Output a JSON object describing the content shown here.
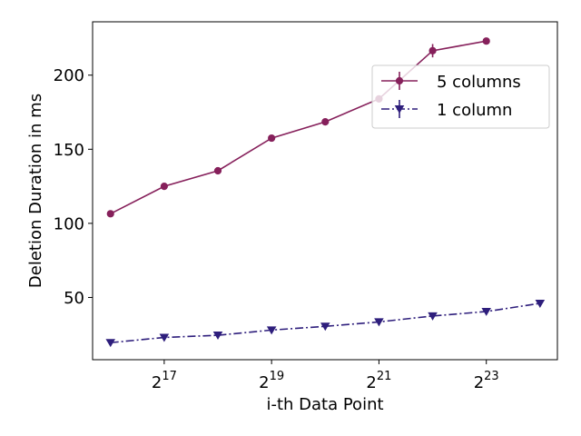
{
  "chart_data": {
    "type": "line",
    "title": "",
    "xlabel": "i-th Data Point",
    "ylabel": "Deletion Duration in ms",
    "x_scale": "log2",
    "x": [
      65536,
      131072,
      262144,
      524288,
      1048576,
      2097152,
      4194304,
      8388608,
      16777216
    ],
    "xticks": [
      {
        "base": "2",
        "exp": "17",
        "value": 131072
      },
      {
        "base": "2",
        "exp": "19",
        "value": 524288
      },
      {
        "base": "2",
        "exp": "21",
        "value": 2097152
      },
      {
        "base": "2",
        "exp": "23",
        "value": 8388608
      }
    ],
    "xlim": [
      52000,
      21000000
    ],
    "ylim": [
      8,
      236
    ],
    "yticks": [
      50,
      100,
      150,
      200
    ],
    "grid": false,
    "legend_position": "top-right",
    "series": [
      {
        "name": "5 columns",
        "color": "#86205b",
        "marker": "circle",
        "linestyle": "solid",
        "values": [
          106.5,
          125,
          135.5,
          157.5,
          168.5,
          184,
          216.5,
          223,
          null
        ],
        "errors": [
          0.5,
          0.5,
          0.5,
          0.5,
          0.5,
          1,
          4.5,
          0.5,
          null
        ]
      },
      {
        "name": "1 column",
        "color": "#2e1e7c",
        "marker": "triangle-down",
        "linestyle": "dashdot",
        "values": [
          19.5,
          23,
          24.5,
          28,
          30.5,
          33.5,
          37.5,
          40.5,
          46
        ],
        "errors": [
          0.3,
          0.3,
          0.3,
          0.3,
          0.3,
          0.3,
          0.3,
          0.3,
          0.3
        ]
      }
    ]
  }
}
